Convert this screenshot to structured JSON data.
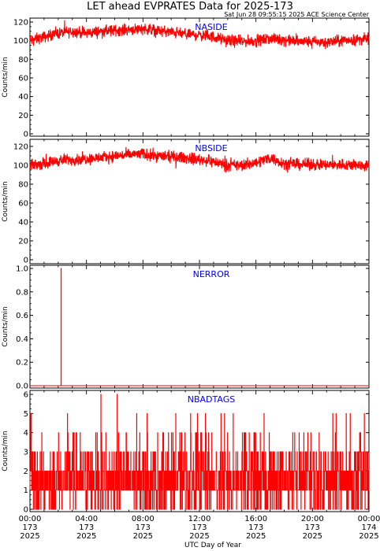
{
  "title": "LET ahead EVPRATES Data for 2025-173",
  "stamp": "Sat Jun 28 09:55:15 2025 ACE Science Center",
  "xlabel": "UTC Day of Year",
  "colors": {
    "trace": "#ff0000",
    "panel_label": "#0000ff",
    "axis": "#000000"
  },
  "x_ticks": [
    {
      "time": "00:00",
      "day": "173",
      "year": "2025"
    },
    {
      "time": "04:00",
      "day": "173",
      "year": "2025"
    },
    {
      "time": "08:00",
      "day": "173",
      "year": "2025"
    },
    {
      "time": "12:00",
      "day": "173",
      "year": "2025"
    },
    {
      "time": "16:00",
      "day": "173",
      "year": "2025"
    },
    {
      "time": "20:00",
      "day": "173",
      "year": "2025"
    },
    {
      "time": "00:00",
      "day": "174",
      "year": "2025"
    }
  ],
  "chart_data": [
    {
      "type": "line",
      "label": "NASIDE",
      "ylabel": "Counts/min",
      "ylim": [
        0,
        120
      ],
      "yticks": [
        0,
        20,
        40,
        60,
        80,
        100,
        120
      ],
      "xlim_hours": [
        0,
        24
      ],
      "series": [
        {
          "name": "NASIDE",
          "x": [
            0,
            1,
            2,
            3,
            4,
            5,
            6,
            7,
            8,
            9,
            10,
            11,
            12,
            13,
            14,
            15,
            16,
            17,
            18,
            19,
            20,
            21,
            22,
            23,
            24
          ],
          "values": [
            100,
            104,
            108,
            110,
            108,
            110,
            111,
            112,
            113,
            111,
            109,
            107,
            106,
            104,
            100,
            99,
            100,
            102,
            101,
            99,
            99,
            98,
            100,
            101,
            102
          ]
        }
      ]
    },
    {
      "type": "line",
      "label": "NBSIDE",
      "ylabel": "Counts/min",
      "ylim": [
        0,
        120
      ],
      "yticks": [
        0,
        20,
        40,
        60,
        80,
        100,
        120
      ],
      "xlim_hours": [
        0,
        24
      ],
      "series": [
        {
          "name": "NBSIDE",
          "x": [
            0,
            1,
            2,
            3,
            4,
            5,
            6,
            7,
            8,
            9,
            10,
            11,
            12,
            13,
            14,
            15,
            16,
            17,
            18,
            19,
            20,
            21,
            22,
            23,
            24
          ],
          "values": [
            100,
            102,
            105,
            106,
            107,
            108,
            110,
            111,
            112,
            110,
            109,
            108,
            106,
            104,
            100,
            100,
            103,
            108,
            102,
            101,
            101,
            100,
            101,
            100,
            100
          ]
        }
      ]
    },
    {
      "type": "line",
      "label": "NERROR",
      "ylabel": "Counts/min",
      "ylim": [
        0,
        1.0
      ],
      "yticks": [
        0.0,
        0.2,
        0.4,
        0.6,
        0.8,
        1.0
      ],
      "xlim_hours": [
        0,
        24
      ],
      "series": [
        {
          "name": "NERROR",
          "x": [
            0,
            2.2,
            2.2,
            2.21,
            2.21,
            24
          ],
          "values": [
            0,
            0,
            1,
            1,
            0,
            0
          ]
        }
      ]
    },
    {
      "type": "line",
      "label": "NBADTAGS",
      "ylabel": "Counts/min",
      "ylim": [
        0,
        6
      ],
      "yticks": [
        0,
        1,
        2,
        3,
        4,
        5,
        6
      ],
      "xlim_hours": [
        0,
        24
      ],
      "series": [
        {
          "name": "NBADTAGS",
          "x": [
            0,
            24
          ],
          "values": [
            1.5,
            1.5
          ]
        }
      ]
    }
  ]
}
